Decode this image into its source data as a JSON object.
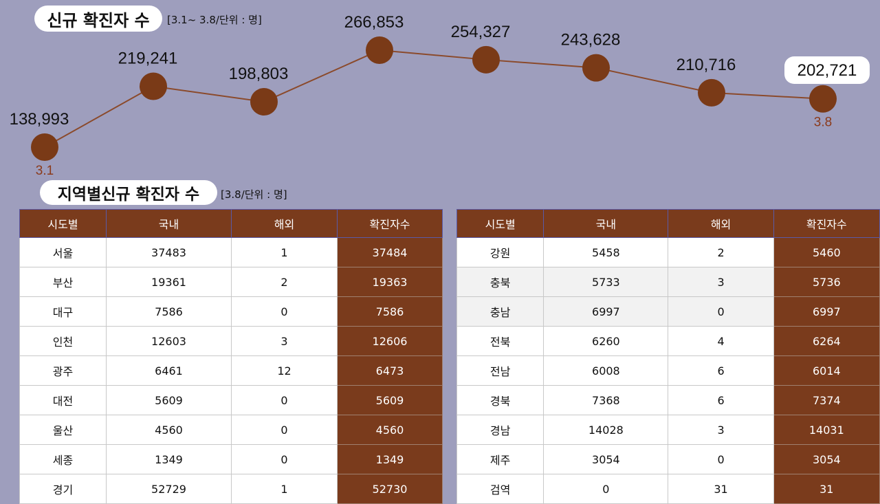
{
  "chart_data": {
    "type": "line",
    "title": "신규 확진자 수",
    "unit_note": "[3.1~ 3.8/단위 : 명]",
    "values": [
      138993,
      219241,
      198803,
      266853,
      254327,
      243628,
      210716,
      202721
    ],
    "value_labels": [
      "138,993",
      "219,241",
      "198,803",
      "266,853",
      "254,327",
      "243,628",
      "210,716",
      "202,721"
    ],
    "x_labels": [
      "3.1",
      "",
      "",
      "",
      "",
      "",
      "",
      "3.8"
    ],
    "line_color": "#8b4a2b",
    "marker_color": "#7a3a17",
    "x_label_color": "#8b3a1a"
  },
  "section2": {
    "title": "지역별신규 확진자 수",
    "unit_note": "[3.8/단위 : 명]"
  },
  "table_headers": [
    "시도별",
    "국내",
    "해외",
    "확진자수"
  ],
  "table_left": [
    [
      "서울",
      "37483",
      "1",
      "37484"
    ],
    [
      "부산",
      "19361",
      "2",
      "19363"
    ],
    [
      "대구",
      "7586",
      "0",
      "7586"
    ],
    [
      "인천",
      "12603",
      "3",
      "12606"
    ],
    [
      "광주",
      "6461",
      "12",
      "6473"
    ],
    [
      "대전",
      "5609",
      "0",
      "5609"
    ],
    [
      "울산",
      "4560",
      "0",
      "4560"
    ],
    [
      "세종",
      "1349",
      "0",
      "1349"
    ],
    [
      "경기",
      "52729",
      "1",
      "52730"
    ]
  ],
  "table_right": [
    [
      "강원",
      "5458",
      "2",
      "5460"
    ],
    [
      "충북",
      "5733",
      "3",
      "5736"
    ],
    [
      "충남",
      "6997",
      "0",
      "6997"
    ],
    [
      "전북",
      "6260",
      "4",
      "6264"
    ],
    [
      "전남",
      "6008",
      "6",
      "6014"
    ],
    [
      "경북",
      "7368",
      "6",
      "7374"
    ],
    [
      "경남",
      "14028",
      "3",
      "14031"
    ],
    [
      "제주",
      "3054",
      "0",
      "3054"
    ],
    [
      "검역",
      "0",
      "31",
      "31"
    ]
  ],
  "colors": {
    "background": "#9e9ebd",
    "accent_brown": "#7a3b1c"
  }
}
